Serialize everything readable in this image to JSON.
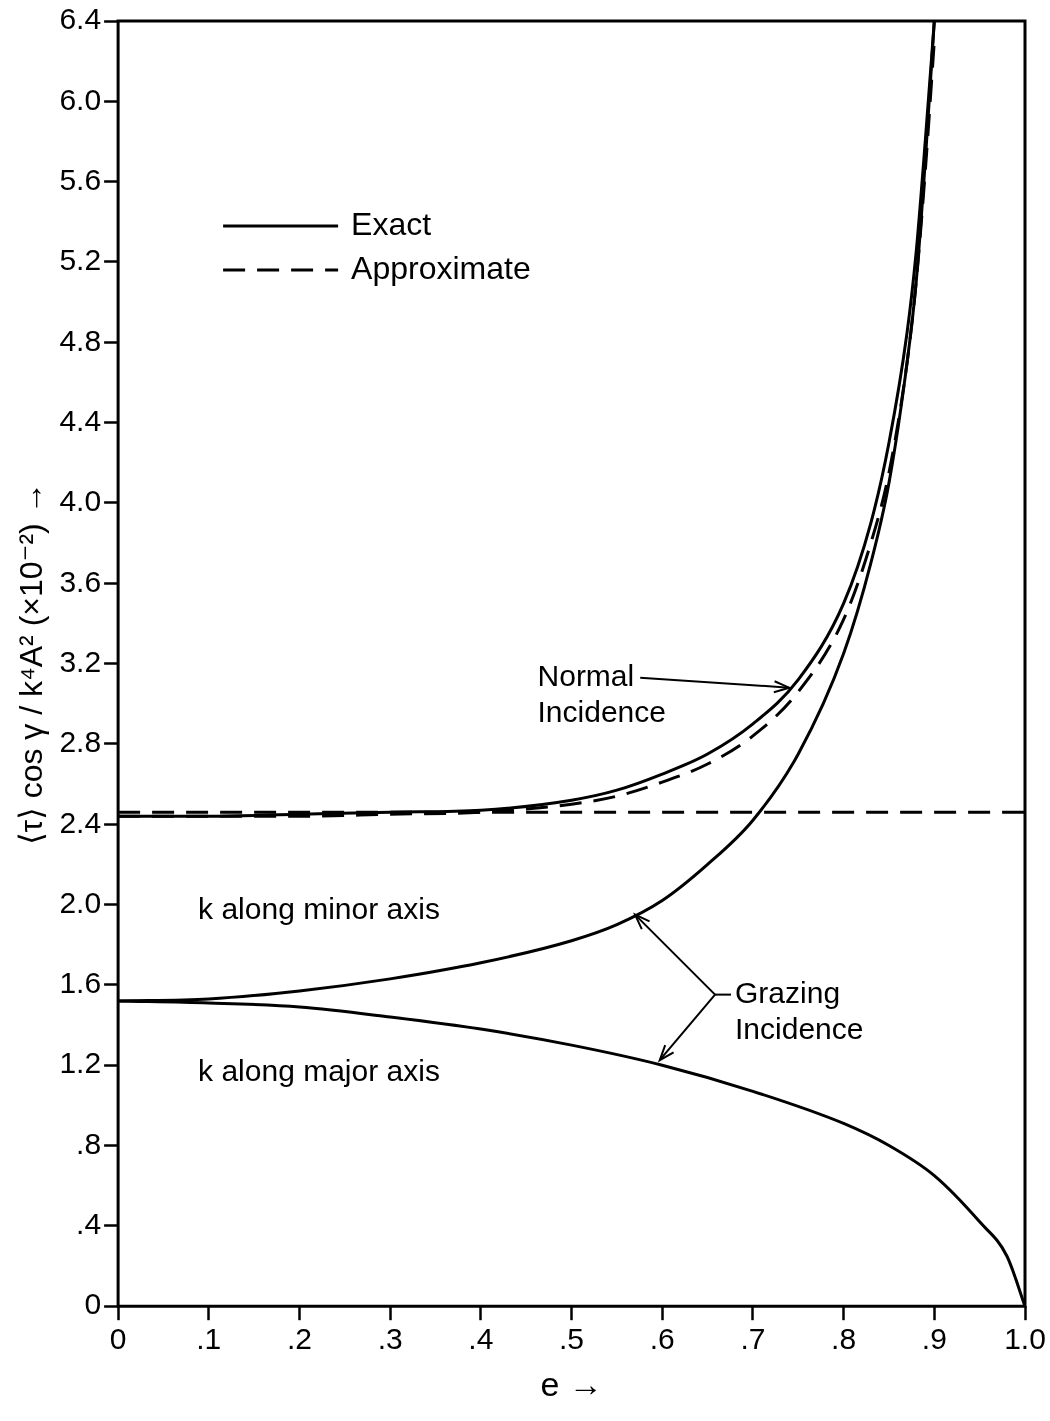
{
  "chart_data": {
    "type": "line",
    "xlabel": "e →",
    "ylabel": "⟨τ⟩ cos γ / k⁴A² (×10⁻²) →",
    "xlim": [
      0,
      1.0
    ],
    "ylim": [
      0,
      6.4
    ],
    "xticks": [
      0,
      {
        "value": 0.1,
        "label": ".1"
      },
      {
        "value": 0.2,
        "label": ".2"
      },
      {
        "value": 0.3,
        "label": ".3"
      },
      {
        "value": 0.4,
        "label": ".4"
      },
      {
        "value": 0.5,
        "label": ".5"
      },
      {
        "value": 0.6,
        "label": ".6"
      },
      {
        "value": 0.7,
        "label": ".7"
      },
      {
        "value": 0.8,
        "label": ".8"
      },
      {
        "value": 0.9,
        "label": ".9"
      },
      {
        "value": 1.0,
        "label": "1.0"
      }
    ],
    "yticks": [
      0,
      {
        "value": 0.4,
        "label": ".4"
      },
      {
        "value": 0.8,
        "label": ".8"
      },
      {
        "value": 1.2,
        "label": "1.2"
      },
      {
        "value": 1.6,
        "label": "1.6"
      },
      {
        "value": 2.0,
        "label": "2.0"
      },
      {
        "value": 2.4,
        "label": "2.4"
      },
      {
        "value": 2.8,
        "label": "2.8"
      },
      {
        "value": 3.2,
        "label": "3.2"
      },
      {
        "value": 3.6,
        "label": "3.6"
      },
      {
        "value": 4.0,
        "label": "4.0"
      },
      {
        "value": 4.4,
        "label": "4.4"
      },
      {
        "value": 4.8,
        "label": "4.8"
      },
      {
        "value": 5.2,
        "label": "5.2"
      },
      {
        "value": 5.6,
        "label": "5.6"
      },
      {
        "value": 6.0,
        "label": "6.0"
      },
      {
        "value": 6.4,
        "label": "6.4"
      }
    ],
    "legend": "top left",
    "marker": "none",
    "series": [
      {
        "name": "Exact",
        "color": "#000000",
        "line_style": "solid",
        "x": [
          0,
          0.1,
          0.2,
          0.3,
          0.4,
          0.5,
          0.55,
          0.6,
          0.65,
          0.7,
          0.75,
          0.8,
          0.83,
          0.85,
          0.87,
          0.88,
          0.89,
          0.9
        ],
        "values": [
          2.44,
          2.44,
          2.45,
          2.46,
          2.47,
          2.52,
          2.57,
          2.65,
          2.75,
          2.9,
          3.12,
          3.5,
          3.9,
          4.3,
          4.85,
          5.25,
          5.8,
          6.4
        ]
      },
      {
        "name": "Approximate",
        "color": "#000000",
        "line_style": "dashed",
        "x": [
          0,
          0.1,
          0.2,
          0.3,
          0.4,
          0.5,
          0.55,
          0.6,
          0.65,
          0.7,
          0.75,
          0.8,
          0.83,
          0.85,
          0.87,
          0.88,
          0.89,
          0.9
        ],
        "values": [
          2.44,
          2.44,
          2.44,
          2.45,
          2.46,
          2.5,
          2.54,
          2.61,
          2.7,
          2.84,
          3.06,
          3.42,
          3.8,
          4.15,
          4.7,
          5.1,
          5.65,
          6.3
        ]
      },
      {
        "color": "#000000",
        "line_style": "dashed",
        "x": [
          0,
          1.0
        ],
        "values": [
          2.46,
          2.46
        ]
      },
      {
        "color": "#000000",
        "line_style": "solid",
        "x": [
          0,
          0.1,
          0.2,
          0.3,
          0.4,
          0.5,
          0.55,
          0.6,
          0.65,
          0.7,
          0.75,
          0.8,
          0.83,
          0.85,
          0.87,
          0.88,
          0.89,
          0.9
        ],
        "values": [
          1.52,
          1.53,
          1.57,
          1.63,
          1.71,
          1.82,
          1.9,
          2.02,
          2.2,
          2.42,
          2.75,
          3.25,
          3.7,
          4.1,
          4.7,
          5.1,
          5.7,
          6.4
        ]
      },
      {
        "color": "#000000",
        "line_style": "solid",
        "x": [
          0,
          0.1,
          0.2,
          0.3,
          0.4,
          0.5,
          0.6,
          0.7,
          0.8,
          0.85,
          0.9,
          0.95,
          0.98,
          1.0
        ],
        "values": [
          1.52,
          1.51,
          1.49,
          1.44,
          1.38,
          1.3,
          1.2,
          1.07,
          0.91,
          0.8,
          0.65,
          0.42,
          0.25,
          0
        ]
      }
    ],
    "annotations": [
      {
        "text": "Normal Incidence",
        "x": 0.74,
        "y": 3.08
      },
      {
        "text": "Grazing Incidence",
        "x": 0.57,
        "y": 1.95
      },
      "k along minor axis",
      "k along major axis"
    ]
  }
}
